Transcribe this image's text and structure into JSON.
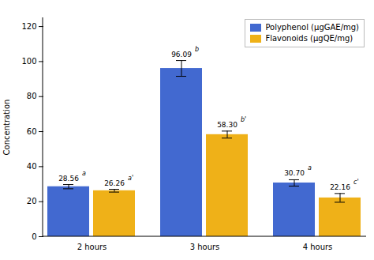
{
  "chart_data": {
    "type": "bar",
    "categories": [
      "2 hours",
      "3 hours",
      "4 hours"
    ],
    "series": [
      {
        "name": "Polyphenol (μgGAE/mg)",
        "values": [
          28.56,
          96.09,
          30.7
        ],
        "errors": [
          1.2,
          4.5,
          1.8
        ],
        "value_labels": [
          "28.56",
          "96.09",
          "30.70"
        ],
        "letters": [
          "a",
          "b",
          "a"
        ]
      },
      {
        "name": "Flavonoids (μgQE/mg)",
        "values": [
          26.26,
          58.3,
          22.16
        ],
        "errors": [
          0.8,
          2.0,
          2.5
        ],
        "value_labels": [
          "26.26",
          "58.30",
          "22.16"
        ],
        "letters": [
          "a'",
          "b'",
          "c'"
        ]
      }
    ],
    "ylabel": "Concentration",
    "ylim": [
      0,
      125
    ],
    "yticks": [
      0,
      20,
      40,
      60,
      80,
      100,
      120
    ],
    "grid": false,
    "legend": "upper right",
    "data_labels": true
  }
}
